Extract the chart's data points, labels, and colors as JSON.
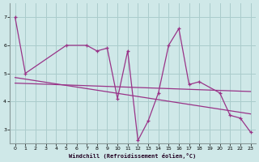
{
  "xlabel": "Windchill (Refroidissement éolien,°C)",
  "bg_color": "#cfe8e8",
  "grid_color": "#aacccc",
  "line_color": "#993388",
  "x_pts": [
    0,
    1,
    5,
    7,
    8,
    9,
    10,
    11,
    12,
    13,
    14,
    15,
    16,
    17,
    18,
    20,
    21,
    22,
    23
  ],
  "y_pts": [
    7.0,
    5.0,
    6.0,
    6.0,
    5.8,
    5.9,
    4.1,
    5.8,
    2.6,
    3.3,
    4.3,
    6.0,
    6.6,
    4.6,
    4.7,
    4.3,
    3.5,
    3.4,
    2.9
  ],
  "trend1_x": [
    0,
    23
  ],
  "trend1_y": [
    4.85,
    3.55
  ],
  "trend2_x": [
    0,
    23
  ],
  "trend2_y": [
    4.65,
    4.35
  ],
  "ylim": [
    2.5,
    7.5
  ],
  "xlim": [
    -0.5,
    23.5
  ],
  "yticks": [
    3,
    4,
    5,
    6,
    7
  ],
  "xticks": [
    0,
    1,
    2,
    3,
    4,
    5,
    6,
    7,
    8,
    9,
    10,
    11,
    12,
    13,
    14,
    15,
    16,
    17,
    18,
    19,
    20,
    21,
    22,
    23
  ]
}
